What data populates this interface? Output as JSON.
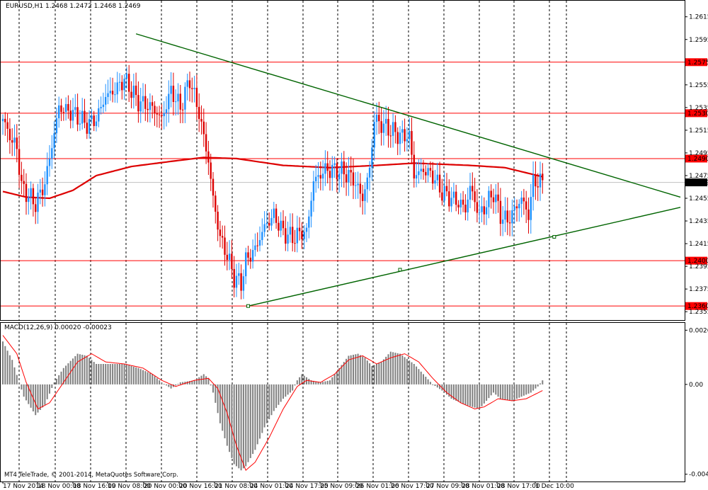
{
  "header": {
    "symbol_line": "EURUSD,H1  1.2468 1.2472 1.2468 1.2469"
  },
  "macd_header": "MACD(12,26,9) 0.00020 -0.00023",
  "copyright": "MT4 TeleTrade, © 2001-2014, MetaQuotes Software Corp.",
  "colors": {
    "bull": "#1e90ff",
    "bear": "#dd0000",
    "level": "#ff0000",
    "ma": "#dd0000",
    "trend": "#006400",
    "hist": "#808080",
    "signal": "#ff0000",
    "grid": "#000000"
  },
  "chart_data": [
    {
      "type": "candlestick",
      "title": "EURUSD,H1",
      "ylim": [
        1.2352,
        1.2622
      ],
      "price_ticks": [
        "1.2615",
        "1.2595",
        "1.2555",
        "1.2535",
        "1.2515",
        "1.2495",
        "1.2475",
        "1.2455",
        "1.2435",
        "1.2415",
        "1.2395",
        "1.2375",
        "1.2355"
      ],
      "levels": [
        {
          "price": 1.2575,
          "label": "1.2575"
        },
        {
          "price": 1.253,
          "label": "1.2530"
        },
        {
          "price": 1.249,
          "label": "1.2490"
        },
        {
          "price": 1.24,
          "label": "1.2400"
        },
        {
          "price": 1.236,
          "label": "1.2360"
        }
      ],
      "current_price": {
        "price": 1.2469,
        "label": "1.2469"
      },
      "x_labels": [
        "17 Nov 2014",
        "18 Nov 00:00",
        "18 Nov 16:00",
        "19 Nov 08:00",
        "20 Nov 00:00",
        "20 Nov 16:00",
        "21 Nov 08:00",
        "24 Nov 01:00",
        "24 Nov 17:00",
        "25 Nov 09:00",
        "26 Nov 01:00",
        "26 Nov 17:00",
        "27 Nov 09:00",
        "28 Nov 01:00",
        "28 Nov 17:00",
        "1 Dec 10:00"
      ],
      "anchors": [
        [
          0,
          1.2525
        ],
        [
          4,
          1.2505
        ],
        [
          6,
          1.25
        ],
        [
          8,
          1.2465
        ],
        [
          12,
          1.2455
        ],
        [
          14,
          1.245
        ],
        [
          18,
          1.2468
        ],
        [
          24,
          1.2535
        ],
        [
          30,
          1.253
        ],
        [
          36,
          1.252
        ],
        [
          40,
          1.2525
        ],
        [
          44,
          1.2545
        ],
        [
          48,
          1.255
        ],
        [
          52,
          1.256
        ],
        [
          58,
          1.254
        ],
        [
          64,
          1.2535
        ],
        [
          68,
          1.2525
        ],
        [
          72,
          1.255
        ],
        [
          76,
          1.2535
        ],
        [
          80,
          1.256
        ],
        [
          84,
          1.253
        ],
        [
          88,
          1.2488
        ],
        [
          90,
          1.2455
        ],
        [
          93,
          1.242
        ],
        [
          96,
          1.2405
        ],
        [
          99,
          1.2385
        ],
        [
          102,
          1.238
        ],
        [
          104,
          1.24
        ],
        [
          108,
          1.241
        ],
        [
          112,
          1.243
        ],
        [
          116,
          1.244
        ],
        [
          120,
          1.2425
        ],
        [
          124,
          1.242
        ],
        [
          128,
          1.2425
        ],
        [
          130,
          1.2425
        ],
        [
          133,
          1.247
        ],
        [
          138,
          1.248
        ],
        [
          142,
          1.248
        ],
        [
          146,
          1.2478
        ],
        [
          150,
          1.2472
        ],
        [
          154,
          1.2455
        ],
        [
          157,
          1.248
        ],
        [
          159,
          1.2525
        ],
        [
          162,
          1.252
        ],
        [
          166,
          1.2515
        ],
        [
          170,
          1.251
        ],
        [
          174,
          1.251
        ],
        [
          176,
          1.2475
        ],
        [
          180,
          1.248
        ],
        [
          184,
          1.2475
        ],
        [
          188,
          1.246
        ],
        [
          192,
          1.2455
        ],
        [
          196,
          1.245
        ],
        [
          198,
          1.2445
        ],
        [
          200,
          1.2465
        ],
        [
          204,
          1.244
        ],
        [
          207,
          1.245
        ],
        [
          210,
          1.246
        ],
        [
          213,
          1.244
        ],
        [
          216,
          1.2435
        ],
        [
          219,
          1.2445
        ],
        [
          222,
          1.2455
        ],
        [
          225,
          1.244
        ],
        [
          227,
          1.247
        ],
        [
          231,
          1.2469
        ]
      ],
      "ma_anchors": [
        [
          0,
          1.2461
        ],
        [
          10,
          1.2456
        ],
        [
          20,
          1.2455
        ],
        [
          30,
          1.2462
        ],
        [
          40,
          1.2475
        ],
        [
          55,
          1.2483
        ],
        [
          70,
          1.2487
        ],
        [
          86,
          1.2491
        ],
        [
          100,
          1.249
        ],
        [
          120,
          1.2484
        ],
        [
          140,
          1.2482
        ],
        [
          160,
          1.2484
        ],
        [
          176,
          1.2486
        ],
        [
          200,
          1.2484
        ],
        [
          215,
          1.2482
        ],
        [
          231,
          1.2474
        ]
      ],
      "trendlines": [
        {
          "from": [
            57,
            1.26
          ],
          "to": [
            290,
            1.2456
          ]
        },
        {
          "from": [
            105,
            1.236
          ],
          "to": [
            290,
            1.2447
          ],
          "marker": [
            170,
            1.2392
          ]
        },
        {
          "marker2": [
            236,
            1.2421
          ]
        }
      ]
    },
    {
      "type": "histogram",
      "title": "MACD(12,26,9)",
      "ylim": [
        -0.0044,
        0.0028
      ],
      "y_ticks": [
        "0.00265",
        "0.00",
        "-0.00439"
      ],
      "hist_anchors": [
        [
          0,
          0.0021
        ],
        [
          4,
          0.0012
        ],
        [
          7,
          0.0001
        ],
        [
          9,
          -0.0006
        ],
        [
          14,
          -0.0015
        ],
        [
          18,
          -0.001
        ],
        [
          22,
          0.0001
        ],
        [
          26,
          0.0008
        ],
        [
          32,
          0.0015
        ],
        [
          36,
          0.0014
        ],
        [
          40,
          0.001
        ],
        [
          46,
          0.001
        ],
        [
          52,
          0.001
        ],
        [
          58,
          0.0008
        ],
        [
          64,
          0.0005
        ],
        [
          68,
          0.0001
        ],
        [
          72,
          -0.0002
        ],
        [
          76,
          0.0001
        ],
        [
          82,
          0.0002
        ],
        [
          86,
          0.0005
        ],
        [
          88,
          0.0003
        ],
        [
          90,
          -0.0004
        ],
        [
          93,
          -0.0019
        ],
        [
          96,
          -0.003
        ],
        [
          99,
          -0.0039
        ],
        [
          102,
          -0.0042
        ],
        [
          104,
          -0.004
        ],
        [
          108,
          -0.0032
        ],
        [
          112,
          -0.0021
        ],
        [
          116,
          -0.0013
        ],
        [
          120,
          -0.0007
        ],
        [
          124,
          -0.0003
        ],
        [
          126,
          0.0002
        ],
        [
          128,
          0.0005
        ],
        [
          132,
          0.0002
        ],
        [
          136,
          0.0001
        ],
        [
          140,
          0.0002
        ],
        [
          144,
          0.0008
        ],
        [
          148,
          0.0014
        ],
        [
          152,
          0.0015
        ],
        [
          155,
          0.0013
        ],
        [
          158,
          0.0009
        ],
        [
          162,
          0.0011
        ],
        [
          166,
          0.0016
        ],
        [
          170,
          0.0015
        ],
        [
          176,
          0.001
        ],
        [
          180,
          0.0005
        ],
        [
          184,
          0.0
        ],
        [
          188,
          -0.0003
        ],
        [
          192,
          -0.0007
        ],
        [
          198,
          -0.001
        ],
        [
          204,
          -0.0012
        ],
        [
          207,
          -0.0008
        ],
        [
          210,
          -0.0004
        ],
        [
          213,
          -0.0007
        ],
        [
          218,
          -0.0008
        ],
        [
          222,
          -0.0006
        ],
        [
          226,
          -0.0004
        ],
        [
          229,
          -0.0001
        ],
        [
          231,
          0.0002
        ]
      ],
      "signal_anchors": [
        [
          0,
          0.0024
        ],
        [
          6,
          0.0015
        ],
        [
          10,
          0.0001
        ],
        [
          15,
          -0.0012
        ],
        [
          20,
          -0.0009
        ],
        [
          26,
          0.0001
        ],
        [
          32,
          0.0011
        ],
        [
          38,
          0.0015
        ],
        [
          44,
          0.0011
        ],
        [
          52,
          0.001
        ],
        [
          60,
          0.0008
        ],
        [
          68,
          0.0002
        ],
        [
          74,
          -0.0001
        ],
        [
          82,
          0.0002
        ],
        [
          88,
          0.0003
        ],
        [
          92,
          -0.0002
        ],
        [
          96,
          -0.0014
        ],
        [
          100,
          -0.003
        ],
        [
          104,
          -0.0042
        ],
        [
          108,
          -0.0038
        ],
        [
          114,
          -0.0026
        ],
        [
          120,
          -0.0012
        ],
        [
          126,
          -0.0001
        ],
        [
          130,
          0.0002
        ],
        [
          136,
          0.0001
        ],
        [
          142,
          0.0005
        ],
        [
          148,
          0.0012
        ],
        [
          154,
          0.0014
        ],
        [
          160,
          0.001
        ],
        [
          166,
          0.0013
        ],
        [
          172,
          0.0015
        ],
        [
          178,
          0.0011
        ],
        [
          184,
          0.0003
        ],
        [
          190,
          -0.0004
        ],
        [
          196,
          -0.0009
        ],
        [
          202,
          -0.0012
        ],
        [
          206,
          -0.0011
        ],
        [
          212,
          -0.0007
        ],
        [
          218,
          -0.0008
        ],
        [
          224,
          -0.0007
        ],
        [
          231,
          -0.0003
        ]
      ]
    }
  ]
}
